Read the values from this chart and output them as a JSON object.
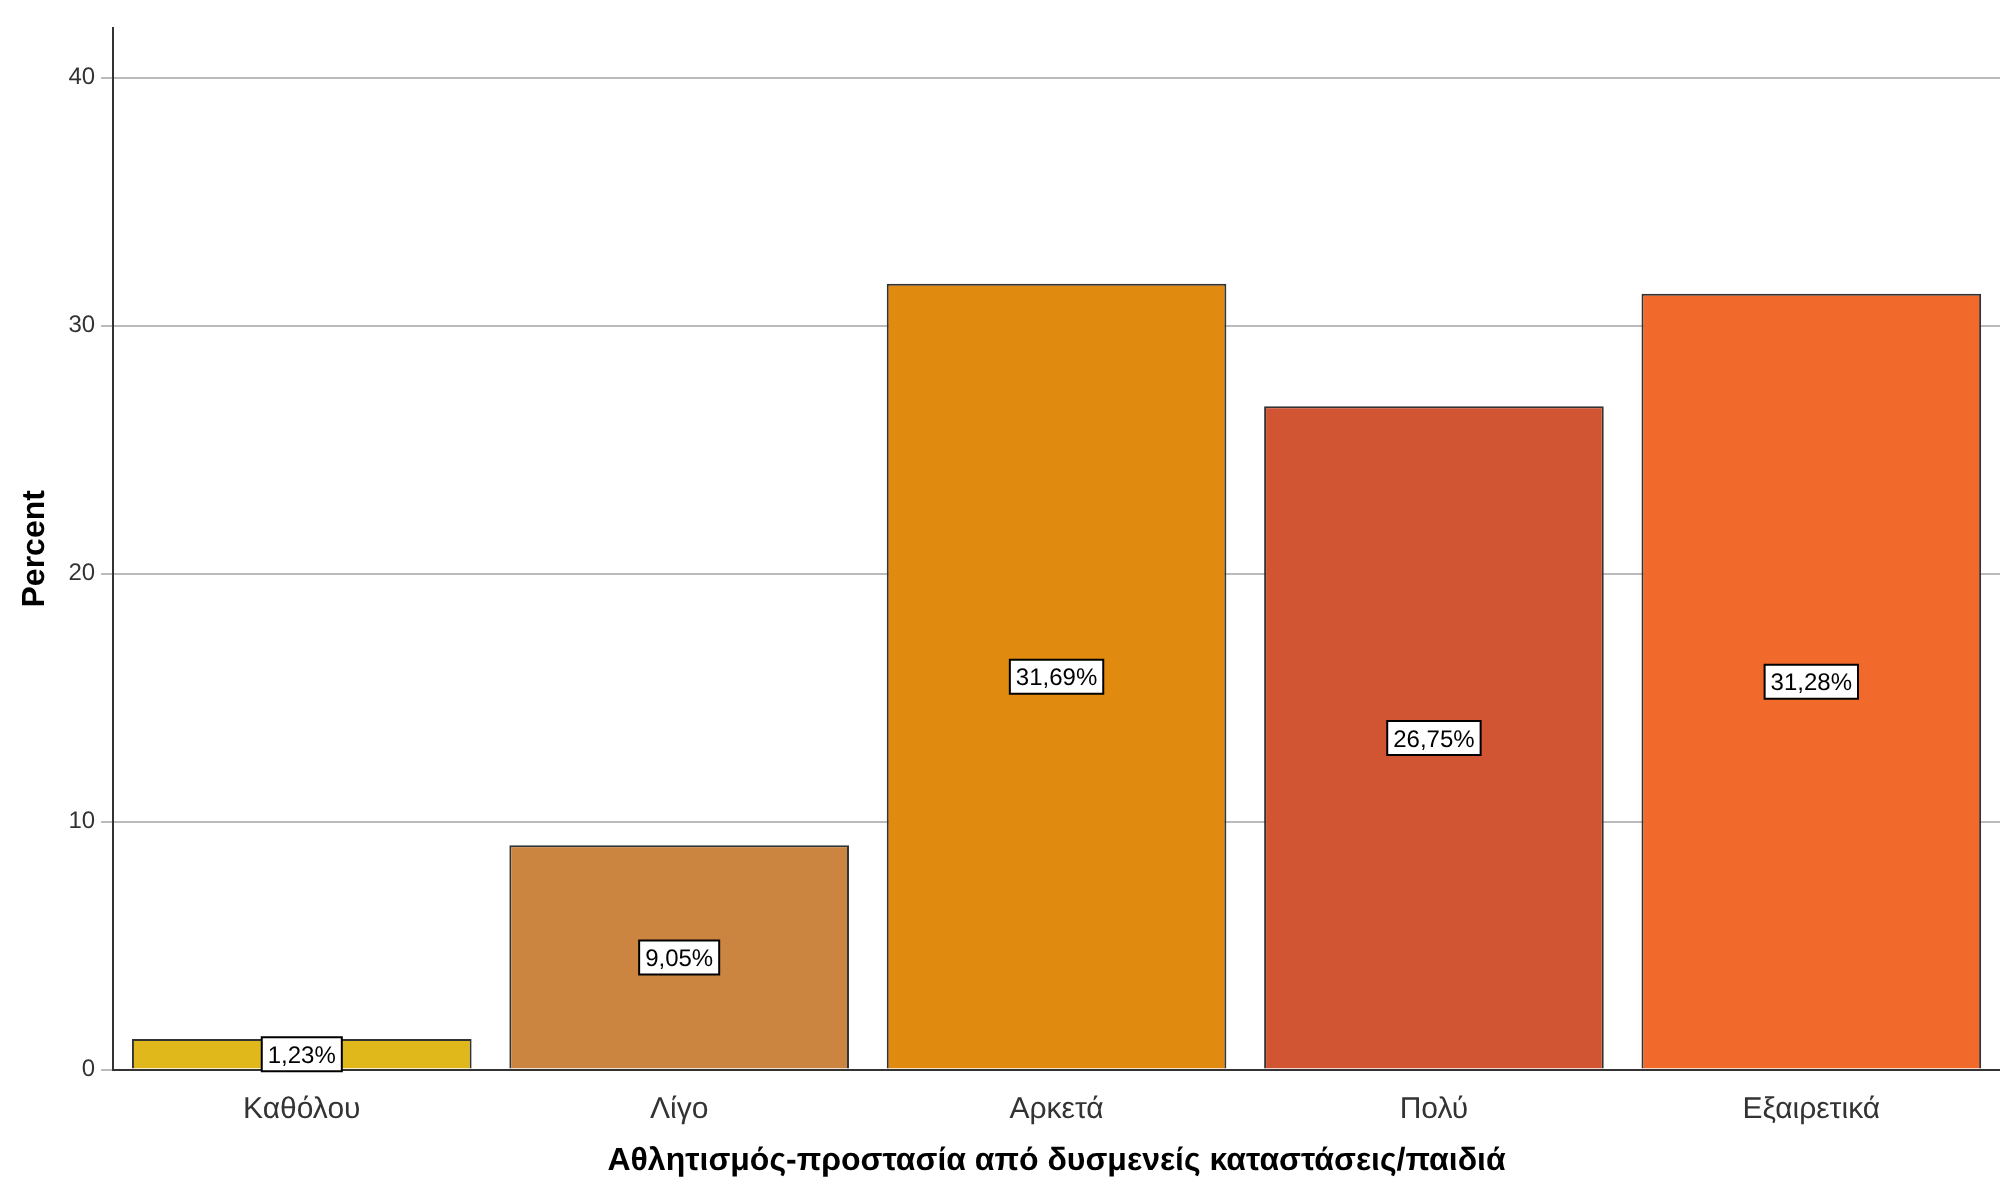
{
  "chart_data": {
    "type": "bar",
    "xlabel": "Αθλητισμός-προστασία από δυσμενείς καταστάσεις/παιδιά",
    "ylabel": "Percent",
    "categories": [
      "Καθόλου",
      "Λίγο",
      "Αρκετά",
      "Πολύ",
      "Εξαιρετικά"
    ],
    "values": [
      1.23,
      9.05,
      31.69,
      26.75,
      31.28
    ],
    "colors": [
      "#e0b81c",
      "#cc8540",
      "#e08a10",
      "#d15533",
      "#f2692c"
    ],
    "value_labels": [
      "1,23%",
      "9,05%",
      "31,69%",
      "26,75%",
      "31,28%"
    ],
    "ylim": [
      0,
      42
    ],
    "yticks": [
      0,
      10,
      20,
      30,
      40
    ],
    "grid": "y",
    "legend": false
  }
}
